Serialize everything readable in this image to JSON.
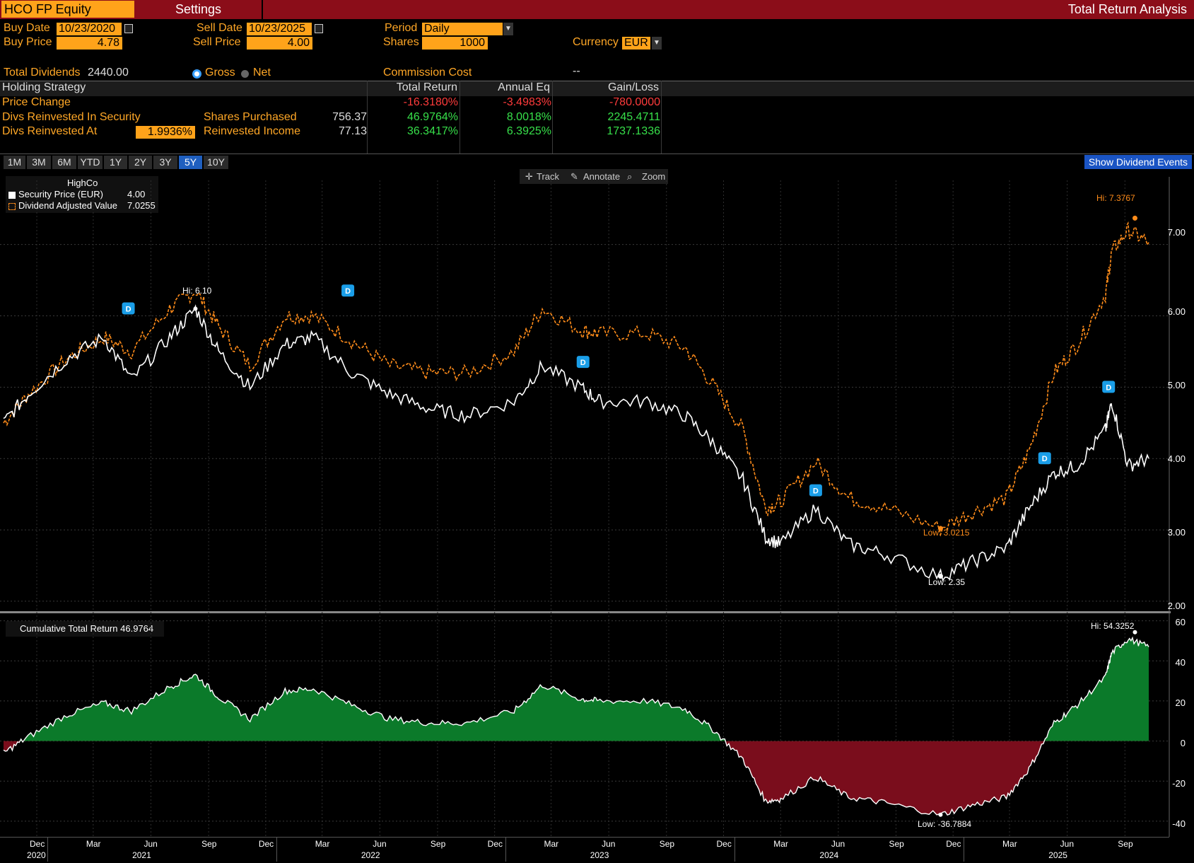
{
  "topbar": {
    "ticker": "HCO FP Equity",
    "settings": "Settings",
    "title": "Total Return Analysis"
  },
  "params": {
    "buy_date_label": "Buy Date",
    "buy_date": "10/23/2020",
    "sell_date_label": "Sell Date",
    "sell_date": "10/23/2025",
    "period_label": "Period",
    "period": "Daily",
    "buy_price_label": "Buy Price",
    "buy_price": "4.78",
    "sell_price_label": "Sell Price",
    "sell_price": "4.00",
    "shares_label": "Shares",
    "shares": "1000",
    "currency_label": "Currency",
    "currency": "EUR",
    "total_dividends_label": "Total Dividends",
    "total_dividends": "2440.00",
    "gross_label": "Gross",
    "net_label": "Net",
    "commission_label": "Commission Cost",
    "commission": "--"
  },
  "table": {
    "headers": [
      "Holding Strategy",
      "Total Return",
      "Annual Eq",
      "Gain/Loss"
    ],
    "rows": [
      {
        "label": "Price Change",
        "total": "-16.3180%",
        "annual": "-3.4983%",
        "gain": "-780.0000"
      },
      {
        "label": "Divs Reinvested In Security",
        "sub_label": "Shares Purchased",
        "sub_value": "756.37",
        "total": "46.9764%",
        "annual": "8.0018%",
        "gain": "2245.4711"
      },
      {
        "label": "Divs Reinvested At",
        "rate": "1.9936%",
        "sub_label": "Reinvested Income",
        "sub_value": "77.13",
        "total": "36.3417%",
        "annual": "6.3925%",
        "gain": "1737.1336"
      }
    ]
  },
  "ranges": [
    "1M",
    "3M",
    "6M",
    "YTD",
    "1Y",
    "2Y",
    "3Y",
    "5Y",
    "10Y"
  ],
  "active_range": "5Y",
  "show_dividend_events": "Show Dividend Events",
  "tools": {
    "track": "Track",
    "annotate": "Annotate",
    "zoom": "Zoom"
  },
  "legend_top": {
    "title": "HighCo",
    "items": [
      {
        "label": "Security Price (EUR)",
        "value": "4.00"
      },
      {
        "label": "Dividend Adjusted Value",
        "value": "7.0255"
      }
    ]
  },
  "legend_bottom": {
    "label": "Cumulative Total Return",
    "value": "46.9764"
  },
  "annotations": {
    "hi_price": "Hi: 6.10",
    "hi_adj": "Hi: 7.3767",
    "low_adj": "Low: 3.0215",
    "low_price": "Low: 2.35",
    "hi_ret": "Hi: 54.3252",
    "low_ret": "Low: -36.7884",
    "div_marker": "D"
  },
  "colors": {
    "price": "#ffffff",
    "adjusted": "#ff8c1a",
    "positive": "#0b7a2a",
    "negative": "#7a0d1c",
    "accent": "#ffa31a",
    "header": "#8b0d19"
  },
  "chart_data": [
    {
      "type": "line",
      "title": "",
      "ylim": [
        1.9,
        7.8
      ],
      "yticks": [
        "2.00",
        "3.00",
        "4.00",
        "5.00",
        "6.00",
        "7.00"
      ],
      "x": [
        "2020-10-23",
        "2020-12-01",
        "2021-02-01",
        "2021-04-01",
        "2021-05-15",
        "2021-07-15",
        "2021-08-25",
        "2021-10-01",
        "2021-11-20",
        "2022-01-15",
        "2022-03-01",
        "2022-05-01",
        "2022-07-01",
        "2022-09-01",
        "2022-11-01",
        "2023-01-15",
        "2023-03-01",
        "2023-05-01",
        "2023-06-01",
        "2023-08-15",
        "2023-10-15",
        "2023-12-01",
        "2024-01-15",
        "2024-02-20",
        "2024-03-15",
        "2024-05-10",
        "2024-07-01",
        "2024-09-01",
        "2024-11-25",
        "2025-01-15",
        "2025-03-10",
        "2025-04-15",
        "2025-05-25",
        "2025-07-01",
        "2025-08-15",
        "2025-08-25",
        "2025-09-20",
        "2025-10-23"
      ],
      "series": [
        {
          "name": "Security Price (EUR)",
          "values": [
            4.5,
            4.9,
            5.4,
            5.7,
            5.1,
            5.7,
            6.1,
            5.5,
            5.0,
            5.6,
            5.7,
            5.2,
            4.9,
            4.7,
            4.6,
            4.8,
            5.3,
            5.0,
            4.8,
            4.8,
            4.6,
            4.2,
            3.7,
            2.9,
            2.8,
            3.3,
            2.8,
            2.65,
            2.35,
            2.55,
            2.75,
            3.3,
            3.8,
            3.9,
            4.4,
            4.8,
            3.9,
            4.0
          ]
        },
        {
          "name": "Dividend Adjusted Value",
          "values": [
            4.5,
            4.9,
            5.4,
            5.7,
            5.5,
            6.1,
            6.35,
            5.85,
            5.3,
            6.0,
            6.0,
            5.65,
            5.3,
            5.2,
            5.2,
            5.5,
            6.1,
            5.8,
            5.75,
            5.75,
            5.55,
            5.0,
            4.4,
            3.3,
            3.4,
            3.95,
            3.45,
            3.3,
            3.02,
            3.25,
            3.45,
            4.1,
            5.2,
            5.6,
            6.3,
            6.9,
            7.2,
            7.03
          ]
        }
      ]
    },
    {
      "type": "area",
      "title": "",
      "ylim": [
        -45,
        62
      ],
      "yticks": [
        "60",
        "40",
        "20",
        "0",
        "-20",
        "-40"
      ],
      "x": [
        "2020-10-23",
        "2020-12-01",
        "2021-02-01",
        "2021-04-01",
        "2021-05-15",
        "2021-07-15",
        "2021-08-25",
        "2021-10-01",
        "2021-11-20",
        "2022-01-15",
        "2022-03-01",
        "2022-05-01",
        "2022-07-01",
        "2022-09-01",
        "2022-11-01",
        "2023-01-15",
        "2023-03-01",
        "2023-05-01",
        "2023-06-01",
        "2023-08-15",
        "2023-10-15",
        "2023-12-01",
        "2024-01-15",
        "2024-02-20",
        "2024-03-15",
        "2024-05-10",
        "2024-07-01",
        "2024-09-01",
        "2024-11-25",
        "2025-01-15",
        "2025-03-10",
        "2025-04-15",
        "2025-05-25",
        "2025-07-01",
        "2025-08-15",
        "2025-08-25",
        "2025-09-20",
        "2025-10-23"
      ],
      "series": [
        {
          "name": "Cumulative Total Return",
          "values": [
            -6,
            2,
            13,
            19,
            15,
            27,
            33,
            22,
            11,
            25,
            26,
            18,
            11,
            9,
            9,
            15,
            28,
            21,
            20,
            20,
            16,
            5,
            -9,
            -30,
            -29,
            -18,
            -28,
            -31,
            -36.8,
            -32,
            -28,
            -14,
            9,
            18,
            32,
            44,
            51,
            47
          ]
        }
      ]
    }
  ],
  "x_axis": {
    "months": [
      "Dec",
      "Mar",
      "Jun",
      "Sep",
      "Dec",
      "Mar",
      "Jun",
      "Sep",
      "Dec",
      "Mar",
      "Jun",
      "Sep",
      "Dec",
      "Mar",
      "Jun",
      "Sep",
      "Dec",
      "Mar",
      "Jun",
      "Sep"
    ],
    "years": [
      "2020",
      "2021",
      "2022",
      "2023",
      "2024",
      "2025"
    ]
  }
}
